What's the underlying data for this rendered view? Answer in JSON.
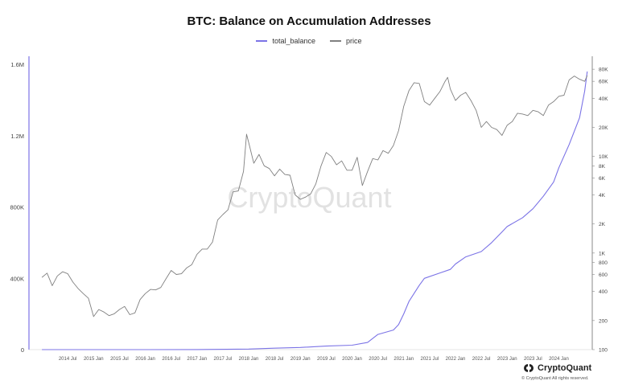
{
  "chart_data": {
    "type": "line",
    "title": "BTC: Balance on Accumulation Addresses",
    "watermark": "CryptoQuant",
    "legend_position": "top-center",
    "grid": false,
    "x_labels": [
      "2014 Jul",
      "2015 Jan",
      "2015 Jul",
      "2016 Jan",
      "2016 Jul",
      "2017 Jan",
      "2017 Jul",
      "2018 Jan",
      "2018 Jul",
      "2019 Jan",
      "2019 Jul",
      "2020 Jan",
      "2020 Jul",
      "2021 Jan",
      "2021 Jul",
      "2022 Jan",
      "2022 Jul",
      "2023 Jan",
      "2023 Jul",
      "2024 Jan"
    ],
    "left_axis": {
      "ticks": [
        "0",
        "400K",
        "800K",
        "1.2M",
        "1.6M"
      ],
      "tick_values": [
        0,
        400000,
        800000,
        1200000,
        1600000
      ],
      "range": [
        0,
        1600000
      ]
    },
    "right_axis": {
      "scale": "log",
      "ticks": [
        "100",
        "200",
        "400",
        "600",
        "800",
        "1K",
        "2K",
        "4K",
        "6K",
        "8K",
        "10K",
        "20K",
        "40K",
        "60K",
        "80K"
      ],
      "tick_values": [
        100,
        200,
        400,
        600,
        800,
        1000,
        2000,
        4000,
        6000,
        8000,
        10000,
        20000,
        40000,
        60000,
        80000
      ],
      "range": [
        100,
        90000
      ]
    },
    "series": [
      {
        "name": "total_balance",
        "axis": "left",
        "color": "#7b73e6",
        "points": [
          [
            2014.0,
            0
          ],
          [
            2016.0,
            0
          ],
          [
            2017.0,
            500
          ],
          [
            2018.0,
            3000
          ],
          [
            2018.5,
            8000
          ],
          [
            2019.0,
            12000
          ],
          [
            2019.5,
            20000
          ],
          [
            2020.0,
            25000
          ],
          [
            2020.3,
            40000
          ],
          [
            2020.5,
            85000
          ],
          [
            2020.8,
            110000
          ],
          [
            2020.9,
            140000
          ],
          [
            2021.0,
            200000
          ],
          [
            2021.1,
            270000
          ],
          [
            2021.3,
            360000
          ],
          [
            2021.4,
            400000
          ],
          [
            2021.7,
            430000
          ],
          [
            2021.9,
            450000
          ],
          [
            2022.0,
            480000
          ],
          [
            2022.2,
            520000
          ],
          [
            2022.5,
            550000
          ],
          [
            2022.7,
            600000
          ],
          [
            2022.9,
            660000
          ],
          [
            2023.0,
            690000
          ],
          [
            2023.3,
            740000
          ],
          [
            2023.5,
            790000
          ],
          [
            2023.7,
            860000
          ],
          [
            2023.9,
            940000
          ],
          [
            2024.0,
            1020000
          ],
          [
            2024.2,
            1150000
          ],
          [
            2024.4,
            1300000
          ],
          [
            2024.5,
            1450000
          ],
          [
            2024.55,
            1560000
          ]
        ]
      },
      {
        "name": "price",
        "axis": "right",
        "color": "#808080",
        "points": [
          [
            2014.0,
            560
          ],
          [
            2014.1,
            620
          ],
          [
            2014.2,
            460
          ],
          [
            2014.3,
            580
          ],
          [
            2014.4,
            640
          ],
          [
            2014.5,
            610
          ],
          [
            2014.6,
            500
          ],
          [
            2014.7,
            430
          ],
          [
            2014.8,
            380
          ],
          [
            2014.9,
            340
          ],
          [
            2015.0,
            220
          ],
          [
            2015.1,
            260
          ],
          [
            2015.2,
            245
          ],
          [
            2015.3,
            225
          ],
          [
            2015.4,
            235
          ],
          [
            2015.5,
            260
          ],
          [
            2015.6,
            280
          ],
          [
            2015.7,
            230
          ],
          [
            2015.8,
            240
          ],
          [
            2015.9,
            330
          ],
          [
            2016.0,
            380
          ],
          [
            2016.1,
            420
          ],
          [
            2016.2,
            415
          ],
          [
            2016.3,
            440
          ],
          [
            2016.4,
            540
          ],
          [
            2016.5,
            660
          ],
          [
            2016.6,
            600
          ],
          [
            2016.7,
            610
          ],
          [
            2016.8,
            700
          ],
          [
            2016.9,
            760
          ],
          [
            2017.0,
            970
          ],
          [
            2017.1,
            1100
          ],
          [
            2017.2,
            1100
          ],
          [
            2017.3,
            1300
          ],
          [
            2017.4,
            2200
          ],
          [
            2017.5,
            2500
          ],
          [
            2017.6,
            2800
          ],
          [
            2017.7,
            4300
          ],
          [
            2017.8,
            4400
          ],
          [
            2017.9,
            7000
          ],
          [
            2017.96,
            17000
          ],
          [
            2018.0,
            14000
          ],
          [
            2018.1,
            8500
          ],
          [
            2018.2,
            10500
          ],
          [
            2018.3,
            8000
          ],
          [
            2018.4,
            7500
          ],
          [
            2018.5,
            6300
          ],
          [
            2018.6,
            7400
          ],
          [
            2018.7,
            6500
          ],
          [
            2018.8,
            6400
          ],
          [
            2018.9,
            4000
          ],
          [
            2019.0,
            3600
          ],
          [
            2019.1,
            3800
          ],
          [
            2019.2,
            4100
          ],
          [
            2019.3,
            5200
          ],
          [
            2019.4,
            8000
          ],
          [
            2019.5,
            11000
          ],
          [
            2019.6,
            10000
          ],
          [
            2019.7,
            8200
          ],
          [
            2019.8,
            9000
          ],
          [
            2019.9,
            7200
          ],
          [
            2020.0,
            7200
          ],
          [
            2020.1,
            9800
          ],
          [
            2020.2,
            5000
          ],
          [
            2020.3,
            7000
          ],
          [
            2020.4,
            9500
          ],
          [
            2020.5,
            9200
          ],
          [
            2020.6,
            11500
          ],
          [
            2020.7,
            10800
          ],
          [
            2020.8,
            13000
          ],
          [
            2020.9,
            18500
          ],
          [
            2021.0,
            33000
          ],
          [
            2021.1,
            48000
          ],
          [
            2021.2,
            58000
          ],
          [
            2021.3,
            57000
          ],
          [
            2021.4,
            37000
          ],
          [
            2021.5,
            34000
          ],
          [
            2021.6,
            40000
          ],
          [
            2021.7,
            47000
          ],
          [
            2021.8,
            60000
          ],
          [
            2021.85,
            66000
          ],
          [
            2021.9,
            50000
          ],
          [
            2022.0,
            38000
          ],
          [
            2022.1,
            43000
          ],
          [
            2022.2,
            46000
          ],
          [
            2022.3,
            38000
          ],
          [
            2022.4,
            30000
          ],
          [
            2022.5,
            20000
          ],
          [
            2022.6,
            23000
          ],
          [
            2022.7,
            20000
          ],
          [
            2022.8,
            19000
          ],
          [
            2022.9,
            16500
          ],
          [
            2023.0,
            21000
          ],
          [
            2023.1,
            23000
          ],
          [
            2023.2,
            28000
          ],
          [
            2023.3,
            27500
          ],
          [
            2023.4,
            26500
          ],
          [
            2023.5,
            30000
          ],
          [
            2023.6,
            29000
          ],
          [
            2023.7,
            26500
          ],
          [
            2023.8,
            34000
          ],
          [
            2023.9,
            37000
          ],
          [
            2024.0,
            42000
          ],
          [
            2024.1,
            43000
          ],
          [
            2024.2,
            62000
          ],
          [
            2024.3,
            68000
          ],
          [
            2024.4,
            63000
          ],
          [
            2024.5,
            60000
          ],
          [
            2024.55,
            69000
          ]
        ]
      }
    ]
  },
  "brand": {
    "name": "CryptoQuant",
    "copyright": "© CryptoQuant All rights reserved."
  }
}
